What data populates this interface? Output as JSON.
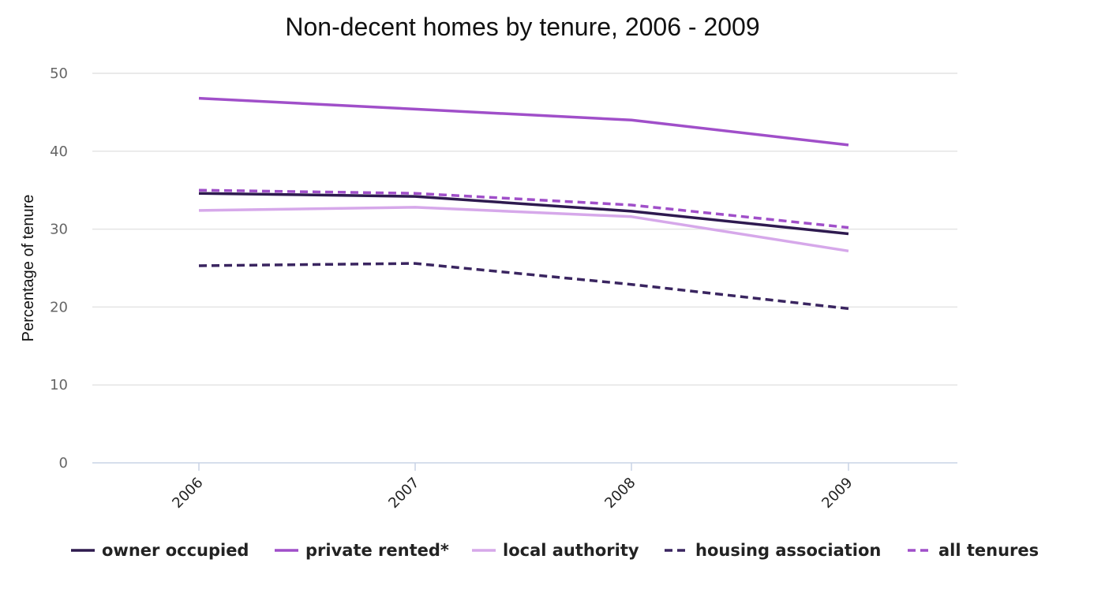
{
  "chart_data": {
    "type": "line",
    "title": "Non-decent homes by tenure, 2006 - 2009",
    "xlabel": "",
    "ylabel": "Percentage of tenure",
    "categories": [
      "2006",
      "2007",
      "2008",
      "2009"
    ],
    "ylim": [
      0,
      50
    ],
    "yticks": [
      0,
      10,
      20,
      30,
      40,
      50
    ],
    "yticklabels": [
      "0",
      "10",
      "20",
      "30",
      "40",
      "50"
    ],
    "grid": true,
    "legend_position": "bottom",
    "series": [
      {
        "name": "owner occupied",
        "values": [
          34.6,
          34.2,
          32.3,
          29.4
        ],
        "color": "#2e1a4f",
        "dashed": false
      },
      {
        "name": "private rented*",
        "values": [
          46.8,
          45.4,
          44.0,
          40.8
        ],
        "color": "#a04fc9",
        "dashed": false
      },
      {
        "name": "local authority",
        "values": [
          32.4,
          32.8,
          31.6,
          27.2
        ],
        "color": "#d6a8ea",
        "dashed": false
      },
      {
        "name": "housing association",
        "values": [
          25.3,
          25.6,
          22.9,
          19.8
        ],
        "color": "#3a2560",
        "dashed": true
      },
      {
        "name": "all tenures",
        "values": [
          35.0,
          34.6,
          33.1,
          30.2
        ],
        "color": "#a04fc9",
        "dashed": true
      }
    ]
  }
}
